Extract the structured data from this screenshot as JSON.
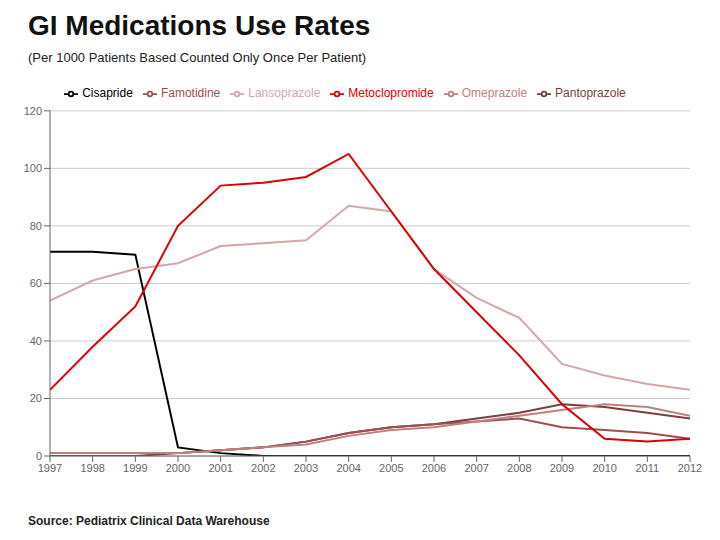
{
  "chart_data": {
    "type": "line",
    "title": "GI Medications Use Rates",
    "subtitle": "(Per 1000 Patients Based Counted Only Once Per Patient)",
    "annotations": [
      "Source: Pediatrix Clinical Data Warehouse"
    ],
    "x": [
      1997,
      1998,
      1999,
      2000,
      2001,
      2002,
      2003,
      2004,
      2005,
      2006,
      2007,
      2008,
      2009,
      2010,
      2011,
      2012
    ],
    "series": [
      {
        "name": "Pantoprazole",
        "color": "#7b3f3f",
        "values": [
          0,
          0,
          0,
          1,
          2,
          3,
          5,
          8,
          10,
          11,
          13,
          15,
          18,
          17,
          15,
          13
        ]
      },
      {
        "name": "Cisapride",
        "color": "#000000",
        "values": [
          71,
          71,
          70,
          3,
          1,
          0,
          0,
          0,
          0,
          0,
          0,
          0,
          0,
          0,
          0,
          0
        ]
      },
      {
        "name": "Famotidine",
        "color": "#9b5050",
        "values": [
          1,
          1,
          1,
          1,
          2,
          3,
          5,
          8,
          10,
          11,
          12,
          13,
          10,
          9,
          8,
          6
        ]
      },
      {
        "name": "Omeprazole",
        "color": "#c08080",
        "values": [
          1,
          1,
          1,
          1,
          2,
          3,
          4,
          7,
          9,
          10,
          12,
          14,
          16,
          18,
          17,
          14
        ]
      },
      {
        "name": "Lansoprazole",
        "color": "#d4a8a8",
        "values": [
          54,
          61,
          65,
          67,
          73,
          74,
          75,
          87,
          85,
          65,
          55,
          48,
          32,
          28,
          25,
          23
        ]
      },
      {
        "name": "Metoclopromide",
        "color": "#dd0000",
        "values": [
          23,
          38,
          52,
          80,
          94,
          95,
          97,
          105,
          85,
          65,
          50,
          35,
          18,
          6,
          5,
          6
        ]
      }
    ],
    "xlim": [
      1997,
      2012
    ],
    "xticks": [
      1997,
      1998,
      1999,
      2000,
      2001,
      2002,
      2003,
      2004,
      2005,
      2006,
      2007,
      2008,
      2009,
      2010,
      2011,
      2012
    ],
    "ylim": [
      0,
      120
    ],
    "yticks": [
      0,
      20,
      40,
      60,
      80,
      100,
      120
    ],
    "grid": true,
    "legend": "top"
  }
}
